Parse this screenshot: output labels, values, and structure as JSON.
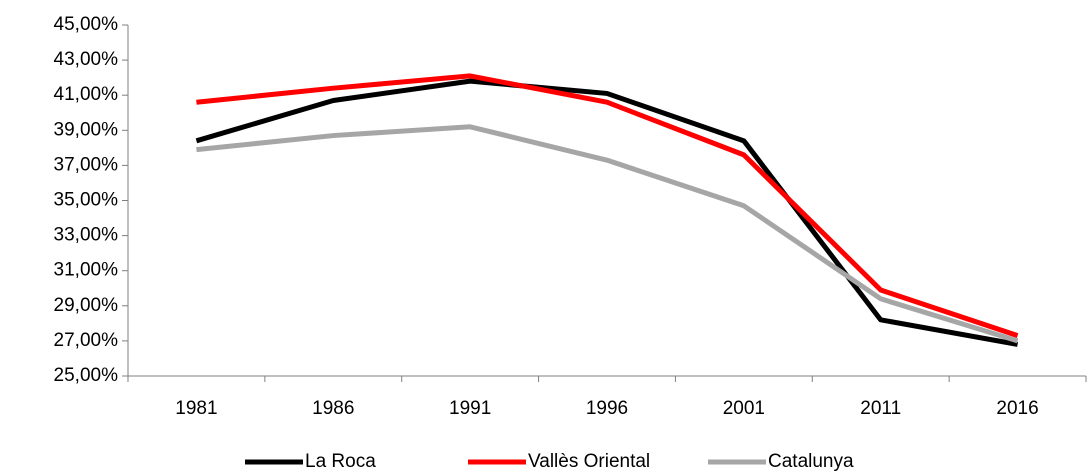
{
  "chart_data": {
    "type": "line",
    "categories": [
      "1981",
      "1986",
      "1991",
      "1996",
      "2001",
      "2011",
      "2016"
    ],
    "series": [
      {
        "name": "La Roca",
        "color": "#000000",
        "values": [
          38.4,
          40.7,
          41.8,
          41.1,
          38.4,
          28.2,
          26.8
        ]
      },
      {
        "name": "Vallès Oriental",
        "color": "#ff0000",
        "values": [
          40.6,
          41.4,
          42.1,
          40.6,
          37.6,
          29.9,
          27.3
        ]
      },
      {
        "name": "Catalunya",
        "color": "#a6a6a6",
        "values": [
          37.9,
          38.7,
          39.2,
          37.3,
          34.7,
          29.4,
          27.0
        ]
      }
    ],
    "ylim": [
      25,
      45
    ],
    "yticks": [
      {
        "value": 25,
        "label": "25,00%"
      },
      {
        "value": 27,
        "label": "27,00%"
      },
      {
        "value": 29,
        "label": "29,00%"
      },
      {
        "value": 31,
        "label": "31,00%"
      },
      {
        "value": 33,
        "label": "33,00%"
      },
      {
        "value": 35,
        "label": "35,00%"
      },
      {
        "value": 37,
        "label": "37,00%"
      },
      {
        "value": 39,
        "label": "39,00%"
      },
      {
        "value": 41,
        "label": "41,00%"
      },
      {
        "value": 43,
        "label": "43,00%"
      },
      {
        "value": 45,
        "label": "45,00%"
      }
    ],
    "legend": "bottom"
  }
}
